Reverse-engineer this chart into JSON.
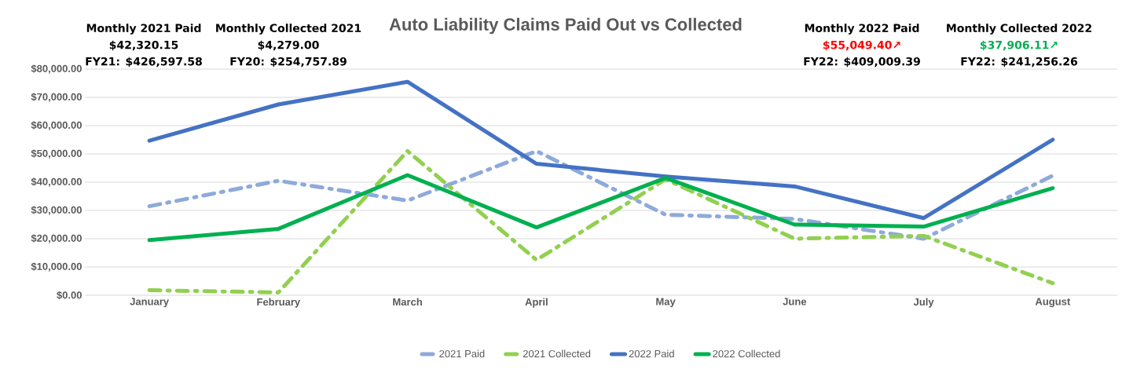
{
  "chart_data": {
    "type": "line",
    "title": "Auto Liability Claims Paid Out vs Collected",
    "categories": [
      "January",
      "February",
      "March",
      "April",
      "May",
      "June",
      "July",
      "August"
    ],
    "series": [
      {
        "name": "2021 Paid",
        "color": "#8eaadb",
        "line_style": "dashed",
        "values": [
          31500,
          40500,
          33500,
          51000,
          28500,
          27000,
          20000,
          42320.15
        ]
      },
      {
        "name": "2021 Collected",
        "color": "#92d050",
        "line_style": "dashed",
        "values": [
          1800,
          1000,
          51000,
          12500,
          41000,
          20000,
          21000,
          4279
        ]
      },
      {
        "name": "2022 Paid",
        "color": "#4472c4",
        "line_style": "solid",
        "values": [
          54700,
          67500,
          75500,
          46500,
          42000,
          38500,
          27300,
          55049.4
        ]
      },
      {
        "name": "2022 Collected",
        "color": "#00b050",
        "line_style": "solid",
        "values": [
          19500,
          23500,
          42500,
          24000,
          41500,
          25000,
          24300,
          37906.11
        ]
      }
    ],
    "ylim": [
      0,
      80000
    ],
    "yticks": [
      {
        "value": 0,
        "label": "$0.00"
      },
      {
        "value": 10000,
        "label": "$10,000.00"
      },
      {
        "value": 20000,
        "label": "$20,000.00"
      },
      {
        "value": 30000,
        "label": "$30,000.00"
      },
      {
        "value": 40000,
        "label": "$40,000.00"
      },
      {
        "value": 50000,
        "label": "$50,000.00"
      },
      {
        "value": 60000,
        "label": "$60,000.00"
      },
      {
        "value": 70000,
        "label": "$70,000.00"
      },
      {
        "value": 80000,
        "label": "$80,000.00"
      }
    ],
    "grid": "y",
    "legend": "bottom",
    "annotations": [
      "Monthly 2021 Paid",
      "$42,320.15",
      "FY21: $426,597.58",
      "Monthly Collected 2021",
      "$4,279.00",
      "FY20: $254,757.89",
      "Monthly 2022 Paid",
      "$55,049.40↗",
      "FY22: $409,009.39",
      "Monthly Collected 2022",
      "$37,906.11↗",
      "FY22: $241,256.26"
    ]
  }
}
